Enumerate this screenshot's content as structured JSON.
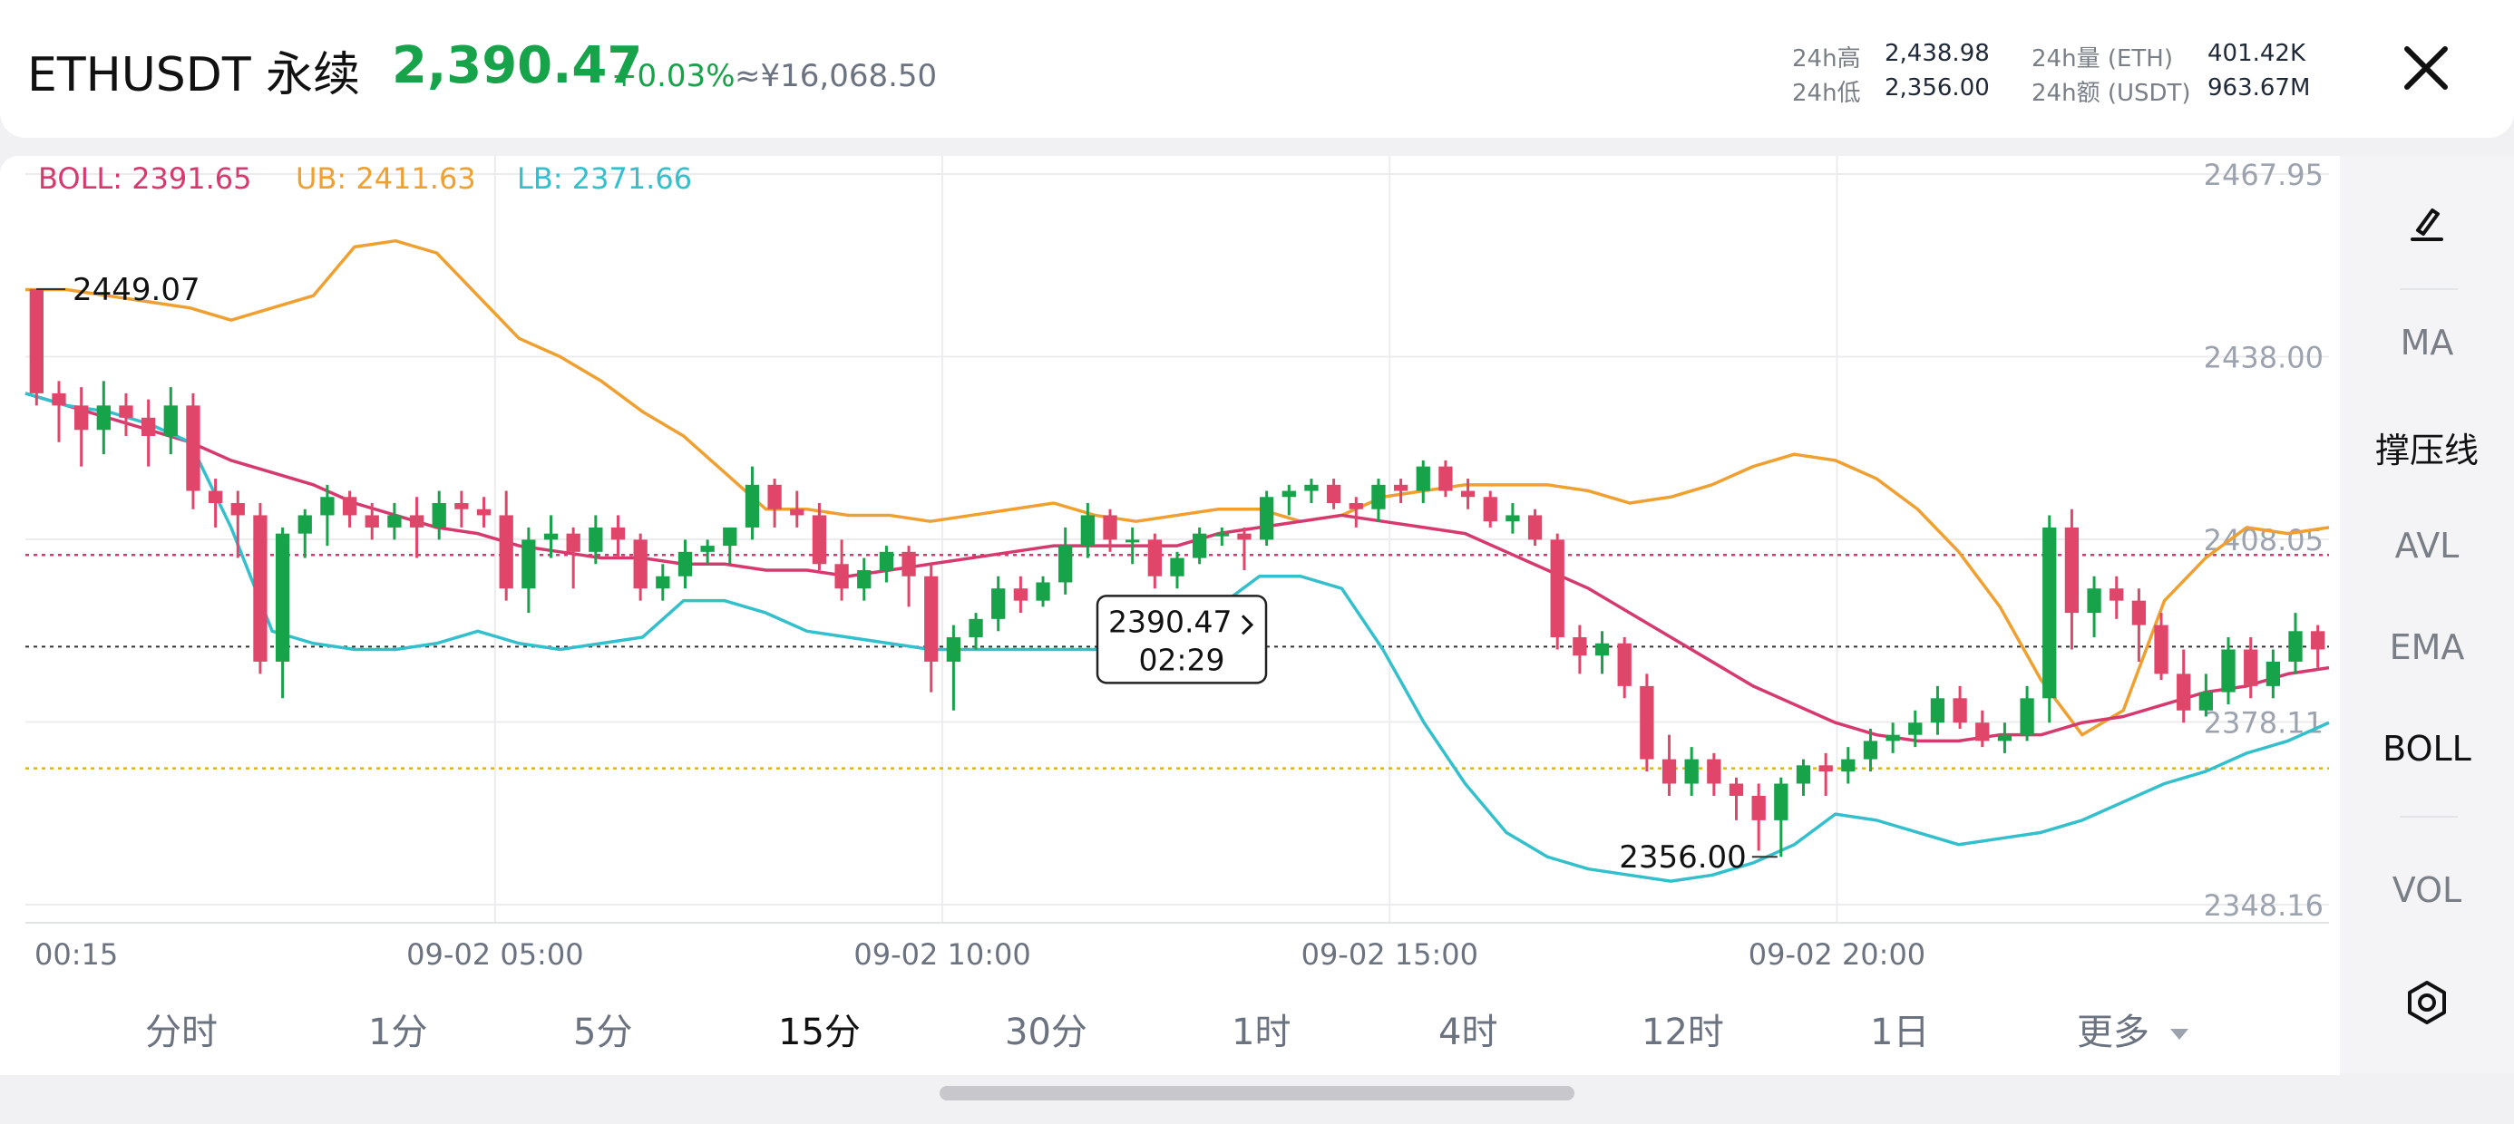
{
  "header": {
    "symbol": "ETHUSDT 永续",
    "price": "2,390.47",
    "change_pct": "+0.03%",
    "cny_price": "≈¥16,068.50",
    "stats": [
      {
        "label": "24h高",
        "value": "2,438.98"
      },
      {
        "label": "24h低",
        "value": "2,356.00"
      },
      {
        "label": "24h量 (ETH)",
        "value": "401.42K"
      },
      {
        "label": "24h额 (USDT)",
        "value": "963.67M"
      }
    ]
  },
  "legend": {
    "boll": "BOLL: 2391.65",
    "ub": "UB: 2411.63",
    "lb": "LB: 2371.66"
  },
  "axis": {
    "y_ticks": [
      "2467.95",
      "2438.00",
      "2408.05",
      "2378.11",
      "2348.16"
    ],
    "x_ticks": [
      "00:15",
      "09-02 05:00",
      "09-02 10:00",
      "09-02 15:00",
      "09-02 20:00"
    ]
  },
  "annotations": {
    "high": "2449.07",
    "low": "2356.00",
    "current_price": "2390.47",
    "countdown": "02:29"
  },
  "right_rail": {
    "items": [
      "MA",
      "撑压线",
      "AVL",
      "EMA",
      "BOLL",
      "VOL"
    ]
  },
  "timeframes": [
    "分时",
    "1分",
    "5分",
    "15分",
    "30分",
    "1时",
    "4时",
    "12时",
    "1日",
    "更多"
  ],
  "colors": {
    "up": "#16a34a",
    "down": "#e0466a",
    "boll_mid": "#d6396d",
    "boll_ub": "#f0a030",
    "boll_lb": "#33c0cc"
  },
  "chart_data": {
    "type": "candlestick",
    "x_range": [
      "00:15",
      "23:45"
    ],
    "ylim": [
      2348.16,
      2467.95
    ],
    "interval": "15m",
    "candles": [
      [
        2449.07,
        2449.07,
        2430,
        2432
      ],
      [
        2432,
        2434,
        2424,
        2430
      ],
      [
        2430,
        2433,
        2420,
        2426
      ],
      [
        2426,
        2434,
        2422,
        2430
      ],
      [
        2430,
        2432,
        2425,
        2428
      ],
      [
        2428,
        2431,
        2420,
        2425
      ],
      [
        2425,
        2433,
        2422,
        2430
      ],
      [
        2430,
        2432,
        2413,
        2416
      ],
      [
        2416,
        2418,
        2410,
        2414
      ],
      [
        2414,
        2416,
        2405,
        2412
      ],
      [
        2412,
        2414,
        2386,
        2388
      ],
      [
        2388,
        2410,
        2382,
        2409
      ],
      [
        2409,
        2413,
        2405,
        2412
      ],
      [
        2412,
        2417,
        2407,
        2415
      ],
      [
        2415,
        2416,
        2410,
        2412
      ],
      [
        2412,
        2414,
        2408,
        2410
      ],
      [
        2410,
        2414,
        2408,
        2412
      ],
      [
        2412,
        2415,
        2405,
        2410
      ],
      [
        2410,
        2416,
        2408,
        2414
      ],
      [
        2414,
        2416,
        2410,
        2413
      ],
      [
        2413,
        2415,
        2410,
        2412
      ],
      [
        2412,
        2416,
        2398,
        2400
      ],
      [
        2400,
        2410,
        2396,
        2408
      ],
      [
        2408,
        2412,
        2405,
        2409
      ],
      [
        2409,
        2410,
        2400,
        2406
      ],
      [
        2406,
        2412,
        2404,
        2410
      ],
      [
        2410,
        2412,
        2405,
        2408
      ],
      [
        2408,
        2409,
        2398,
        2400
      ],
      [
        2400,
        2404,
        2398,
        2402
      ],
      [
        2402,
        2408,
        2400,
        2406
      ],
      [
        2406,
        2408,
        2404,
        2407
      ],
      [
        2407,
        2410,
        2404,
        2410
      ],
      [
        2410,
        2420,
        2408,
        2417
      ],
      [
        2417,
        2418,
        2410,
        2413
      ],
      [
        2413,
        2416,
        2410,
        2412
      ],
      [
        2412,
        2414,
        2403,
        2404
      ],
      [
        2404,
        2408,
        2398,
        2400
      ],
      [
        2400,
        2405,
        2398,
        2403
      ],
      [
        2403,
        2407,
        2401,
        2406
      ],
      [
        2406,
        2407,
        2397,
        2402
      ],
      [
        2402,
        2404,
        2383,
        2388
      ],
      [
        2388,
        2394,
        2380,
        2392
      ],
      [
        2392,
        2396,
        2390,
        2395
      ],
      [
        2395,
        2402,
        2393,
        2400
      ],
      [
        2400,
        2402,
        2396,
        2398
      ],
      [
        2398,
        2402,
        2397,
        2401
      ],
      [
        2401,
        2410,
        2399,
        2407
      ],
      [
        2407,
        2414,
        2405,
        2412
      ],
      [
        2412,
        2413,
        2406,
        2408
      ],
      [
        2408,
        2410,
        2404,
        2408
      ],
      [
        2408,
        2409,
        2400,
        2402
      ],
      [
        2402,
        2406,
        2400,
        2405
      ],
      [
        2405,
        2410,
        2404,
        2409
      ],
      [
        2409,
        2410,
        2407,
        2409
      ],
      [
        2409,
        2410,
        2403,
        2408
      ],
      [
        2408,
        2416,
        2407,
        2415
      ],
      [
        2415,
        2417,
        2412,
        2416
      ],
      [
        2416,
        2418,
        2414,
        2417
      ],
      [
        2417,
        2418,
        2413,
        2414
      ],
      [
        2414,
        2415,
        2410,
        2413
      ],
      [
        2413,
        2418,
        2411,
        2417
      ],
      [
        2417,
        2418,
        2414,
        2416
      ],
      [
        2416,
        2421,
        2414,
        2420
      ],
      [
        2420,
        2421,
        2415,
        2416
      ],
      [
        2416,
        2418,
        2413,
        2415
      ],
      [
        2415,
        2416,
        2410,
        2411
      ],
      [
        2411,
        2414,
        2409,
        2412
      ],
      [
        2412,
        2413,
        2407,
        2408
      ],
      [
        2408,
        2409,
        2390,
        2392
      ],
      [
        2392,
        2394,
        2386,
        2389
      ],
      [
        2389,
        2393,
        2386,
        2391
      ],
      [
        2391,
        2392,
        2382,
        2384
      ],
      [
        2384,
        2386,
        2370,
        2372
      ],
      [
        2372,
        2376,
        2366,
        2368
      ],
      [
        2368,
        2374,
        2366,
        2372
      ],
      [
        2372,
        2373,
        2366,
        2368
      ],
      [
        2368,
        2369,
        2362,
        2366
      ],
      [
        2366,
        2368,
        2357,
        2362
      ],
      [
        2362,
        2369,
        2356,
        2368
      ],
      [
        2368,
        2372,
        2366,
        2371
      ],
      [
        2371,
        2373,
        2366,
        2370
      ],
      [
        2370,
        2374,
        2368,
        2372
      ],
      [
        2372,
        2377,
        2370,
        2375
      ],
      [
        2375,
        2378,
        2373,
        2376
      ],
      [
        2376,
        2380,
        2374,
        2378
      ],
      [
        2378,
        2384,
        2376,
        2382
      ],
      [
        2382,
        2384,
        2377,
        2378
      ],
      [
        2378,
        2380,
        2374,
        2375
      ],
      [
        2375,
        2378,
        2373,
        2376
      ],
      [
        2376,
        2384,
        2375,
        2382
      ],
      [
        2382,
        2412,
        2378,
        2410
      ],
      [
        2410,
        2413,
        2390,
        2396
      ],
      [
        2396,
        2402,
        2392,
        2400
      ],
      [
        2400,
        2402,
        2395,
        2398
      ],
      [
        2398,
        2400,
        2388,
        2394
      ],
      [
        2394,
        2396,
        2385,
        2386
      ],
      [
        2386,
        2390,
        2378,
        2380
      ],
      [
        2380,
        2386,
        2379,
        2383
      ],
      [
        2383,
        2392,
        2381,
        2390
      ],
      [
        2390,
        2392,
        2382,
        2384
      ],
      [
        2384,
        2390,
        2382,
        2388
      ],
      [
        2388,
        2396,
        2386,
        2393
      ],
      [
        2393,
        2394,
        2387,
        2390
      ]
    ],
    "ub": [
      2449,
      2449,
      2448,
      2447,
      2446,
      2444,
      2446,
      2448,
      2456,
      2457,
      2455,
      2448,
      2441,
      2438,
      2434,
      2429,
      2425,
      2419,
      2413,
      2413,
      2412,
      2412,
      2411,
      2412,
      2413,
      2414,
      2412,
      2411,
      2412,
      2413,
      2413,
      2411,
      2412,
      2415,
      2416,
      2417,
      2417,
      2417,
      2416,
      2414,
      2415,
      2417,
      2420,
      2422,
      2421,
      2418,
      2413,
      2406,
      2397,
      2385,
      2376,
      2380,
      2398,
      2405,
      2410,
      2409,
      2410
    ],
    "mid": [
      2432,
      2430,
      2428,
      2426,
      2424,
      2421,
      2419,
      2417,
      2414,
      2412,
      2410,
      2409,
      2407,
      2406,
      2405,
      2405,
      2404,
      2404,
      2403,
      2403,
      2402,
      2403,
      2404,
      2405,
      2406,
      2407,
      2407,
      2407,
      2407,
      2409,
      2410,
      2411,
      2412,
      2411,
      2410,
      2409,
      2406,
      2403,
      2400,
      2396,
      2392,
      2388,
      2384,
      2381,
      2378,
      2376,
      2375,
      2375,
      2376,
      2376,
      2378,
      2379,
      2381,
      2383,
      2384,
      2386,
      2387
    ],
    "lb": [
      2432,
      2430,
      2429,
      2427,
      2424,
      2410,
      2393,
      2391,
      2390,
      2390,
      2391,
      2393,
      2391,
      2390,
      2391,
      2392,
      2398,
      2398,
      2396,
      2393,
      2392,
      2391,
      2390,
      2390,
      2390,
      2390,
      2390,
      2391,
      2391,
      2397,
      2402,
      2402,
      2400,
      2390,
      2378,
      2368,
      2360,
      2356,
      2354,
      2353,
      2352,
      2353,
      2355,
      2358,
      2363,
      2362,
      2360,
      2358,
      2359,
      2360,
      2362,
      2365,
      2368,
      2370,
      2373,
      2375,
      2378
    ],
    "ref_lines": {
      "current_price": 2390.47,
      "pink_level": 2405.5,
      "yellow_level": 2370.5
    }
  }
}
